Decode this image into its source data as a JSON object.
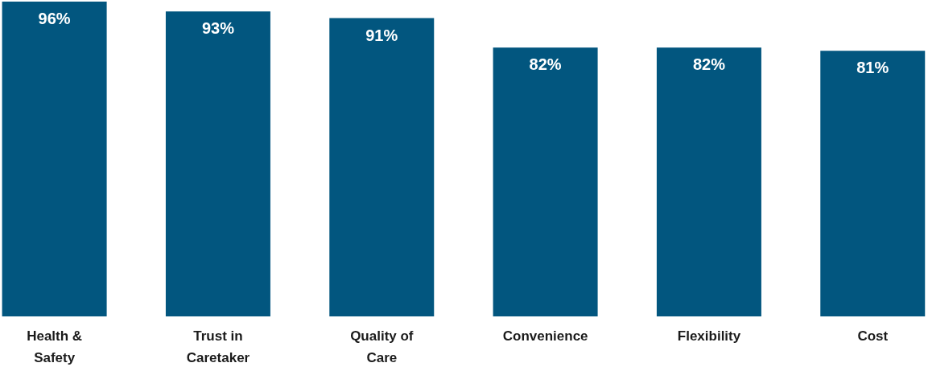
{
  "chart_data": {
    "type": "bar",
    "categories": [
      "Health & Safety",
      "Trust in Caretaker",
      "Quality of Care",
      "Convenience",
      "Flexibility",
      "Cost"
    ],
    "values": [
      96,
      93,
      91,
      82,
      82,
      81
    ],
    "value_labels": [
      "96%",
      "93%",
      "91%",
      "82%",
      "82%",
      "81%"
    ],
    "color": "#02567f"
  }
}
